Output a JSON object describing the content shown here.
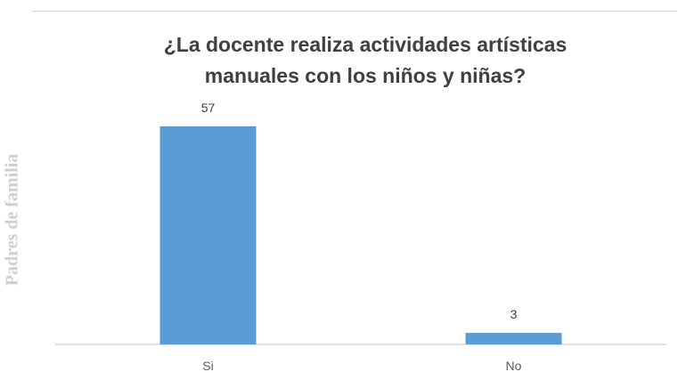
{
  "chart_data": {
    "type": "bar",
    "title_line1": "¿La docente realiza actividades artísticas",
    "title_line2": "manuales con los niños y niñas?",
    "ylabel": "Padres de familia",
    "categories": [
      "Si",
      "No"
    ],
    "values": [
      57,
      3
    ],
    "ylim": [
      0,
      60
    ],
    "bar_color": "#5b9bd5",
    "grid": false
  }
}
